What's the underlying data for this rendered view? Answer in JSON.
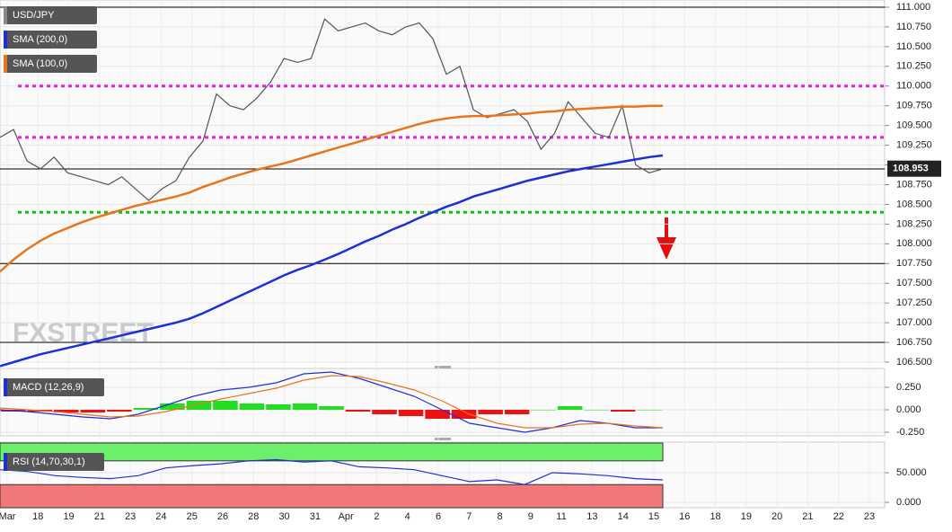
{
  "chart_data": [
    {
      "type": "line",
      "watermark": "FXSTREET",
      "ylim": [
        106.5,
        111.0
      ],
      "yticks": [
        {
          "value": 111.0,
          "label": "111.000"
        },
        {
          "value": 110.75,
          "label": "110.750"
        },
        {
          "value": 110.5,
          "label": "110.500"
        },
        {
          "value": 110.25,
          "label": "110.250"
        },
        {
          "value": 110.0,
          "label": "110.000"
        },
        {
          "value": 109.75,
          "label": "109.750"
        },
        {
          "value": 109.5,
          "label": "109.500"
        },
        {
          "value": 109.25,
          "label": "109.250"
        },
        {
          "value": 109.0,
          "label": "109.000"
        },
        {
          "value": 108.75,
          "label": "108.750"
        },
        {
          "value": 108.5,
          "label": "108.500"
        },
        {
          "value": 108.25,
          "label": "108.250"
        },
        {
          "value": 108.0,
          "label": "108.000"
        },
        {
          "value": 107.75,
          "label": "107.750"
        },
        {
          "value": 107.5,
          "label": "107.500"
        },
        {
          "value": 107.25,
          "label": "107.250"
        },
        {
          "value": 107.0,
          "label": "107.000"
        },
        {
          "value": 106.75,
          "label": "106.750"
        },
        {
          "value": 106.5,
          "label": "106.500"
        }
      ],
      "xticks": [
        "Mar",
        "18",
        "19",
        "21",
        "23",
        "24",
        "25",
        "26",
        "28",
        "30",
        "31",
        "Apr",
        "2",
        "4",
        "6",
        "7",
        "8",
        "9",
        "11",
        "13",
        "14",
        "15",
        "16",
        "18",
        "19",
        "20",
        "21",
        "22",
        "23"
      ],
      "last_price": {
        "value": 108.953,
        "label": "108.953"
      },
      "levels": [
        {
          "value": 111.0,
          "color": "#000000",
          "dashed": false
        },
        {
          "value": 110.0,
          "color": "#e020e0",
          "dashed": true
        },
        {
          "value": 109.35,
          "color": "#e020e0",
          "dashed": true
        },
        {
          "value": 108.95,
          "color": "#000000",
          "dashed": false
        },
        {
          "value": 108.4,
          "color": "#10c010",
          "dashed": true
        },
        {
          "value": 107.75,
          "color": "#000000",
          "dashed": false
        },
        {
          "value": 106.75,
          "color": "#000000",
          "dashed": false
        }
      ],
      "series": [
        {
          "name": "USD/JPY",
          "color": "#555555",
          "values": [
            109.35,
            109.45,
            109.05,
            108.95,
            109.1,
            108.9,
            108.85,
            108.8,
            108.75,
            108.85,
            108.7,
            108.55,
            108.7,
            108.8,
            109.1,
            109.3,
            109.9,
            109.75,
            109.7,
            109.85,
            110.05,
            110.35,
            110.3,
            110.35,
            110.85,
            110.7,
            110.75,
            110.8,
            110.7,
            110.65,
            110.75,
            110.8,
            110.6,
            110.15,
            110.25,
            109.7,
            109.6,
            109.65,
            109.7,
            109.55,
            109.2,
            109.4,
            109.8,
            109.6,
            109.4,
            109.35,
            109.75,
            109.0,
            108.9,
            108.95
          ]
        },
        {
          "name": "SMA (200,0)",
          "color": "#1f2fd6",
          "values": [
            106.45,
            106.5,
            106.55,
            106.6,
            106.64,
            106.68,
            106.72,
            106.76,
            106.8,
            106.84,
            106.88,
            106.92,
            106.96,
            107.0,
            107.05,
            107.12,
            107.2,
            107.28,
            107.36,
            107.44,
            107.52,
            107.6,
            107.67,
            107.73,
            107.8,
            107.87,
            107.95,
            108.03,
            108.1,
            108.18,
            108.25,
            108.33,
            108.4,
            108.47,
            108.53,
            108.6,
            108.65,
            108.7,
            108.75,
            108.8,
            108.84,
            108.88,
            108.92,
            108.95,
            108.98,
            109.01,
            109.04,
            109.07,
            109.1,
            109.12
          ]
        },
        {
          "name": "SMA (100,0)",
          "color": "#e8741e",
          "values": [
            107.65,
            107.8,
            107.93,
            108.04,
            108.13,
            108.2,
            108.27,
            108.33,
            108.38,
            108.43,
            108.48,
            108.52,
            108.56,
            108.6,
            108.65,
            108.72,
            108.78,
            108.84,
            108.89,
            108.94,
            108.98,
            109.02,
            109.07,
            109.12,
            109.17,
            109.22,
            109.27,
            109.32,
            109.37,
            109.42,
            109.47,
            109.52,
            109.56,
            109.59,
            109.61,
            109.62,
            109.62,
            109.63,
            109.64,
            109.65,
            109.67,
            109.68,
            109.7,
            109.71,
            109.72,
            109.73,
            109.74,
            109.74,
            109.75,
            109.75
          ]
        }
      ]
    },
    {
      "type": "macd",
      "title": "MACD (12,26,9)",
      "ylim": [
        -0.29,
        0.46
      ],
      "yticks": [
        {
          "value": 0.25,
          "label": "0.250"
        },
        {
          "value": 0,
          "label": "0.000"
        },
        {
          "value": -0.25,
          "label": "-0.250"
        }
      ],
      "histogram": {
        "up_color": "#22dd22",
        "down_color": "#ee1111",
        "values": [
          -0.02,
          -0.02,
          -0.03,
          -0.03,
          -0.02,
          0.02,
          0.07,
          0.1,
          0.1,
          0.07,
          0.06,
          0.07,
          0.04,
          -0.02,
          -0.05,
          -0.07,
          -0.1,
          -0.1,
          -0.05,
          -0.05,
          0.0,
          0.04,
          0.0,
          -0.02,
          0.0
        ]
      },
      "series": [
        {
          "color": "#1f2fd6",
          "values": [
            0.0,
            -0.02,
            -0.05,
            -0.08,
            -0.1,
            -0.05,
            0.05,
            0.15,
            0.22,
            0.25,
            0.3,
            0.4,
            0.42,
            0.35,
            0.25,
            0.15,
            0.0,
            -0.15,
            -0.2,
            -0.25,
            -0.2,
            -0.12,
            -0.15,
            -0.2,
            -0.2
          ]
        },
        {
          "color": "#e8741e",
          "values": [
            0.02,
            0.0,
            -0.02,
            -0.05,
            -0.08,
            -0.07,
            -0.02,
            0.05,
            0.12,
            0.18,
            0.24,
            0.33,
            0.38,
            0.37,
            0.3,
            0.22,
            0.1,
            -0.05,
            -0.15,
            -0.2,
            -0.2,
            -0.16,
            -0.15,
            -0.18,
            -0.2
          ]
        }
      ]
    },
    {
      "type": "rsi",
      "title": "RSI (14,70,30,1)",
      "ylim": [
        -9,
        100
      ],
      "yticks": [
        {
          "value": 50,
          "label": "50.000"
        },
        {
          "value": 0,
          "label": "0.000"
        }
      ],
      "overbought": 70,
      "oversold": 30,
      "series": [
        {
          "color": "#1f2fd6",
          "values": [
            55,
            52,
            45,
            42,
            40,
            45,
            58,
            62,
            65,
            70,
            72,
            68,
            70,
            60,
            58,
            55,
            45,
            35,
            38,
            30,
            50,
            48,
            45,
            40,
            38
          ]
        }
      ]
    }
  ]
}
